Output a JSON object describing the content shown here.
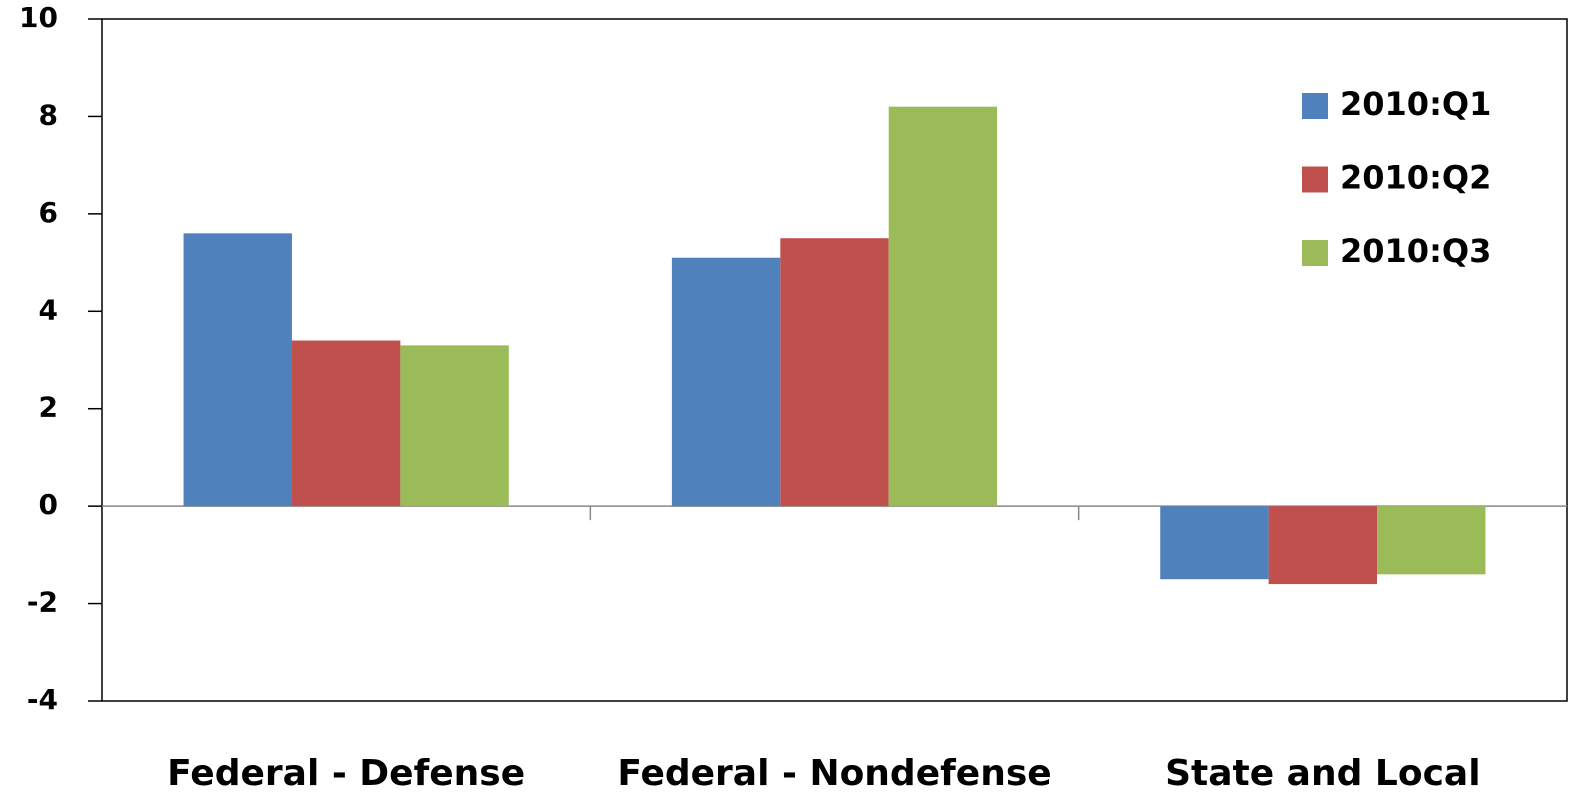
{
  "chart_data": {
    "type": "bar",
    "categories": [
      "Federal - Defense",
      "Federal - Nondefense",
      "State and Local"
    ],
    "series": [
      {
        "name": "2010:Q1",
        "color": "#4f81bd",
        "values": [
          5.6,
          5.1,
          -1.5
        ]
      },
      {
        "name": "2010:Q2",
        "color": "#c0504d",
        "values": [
          3.4,
          5.5,
          -1.6
        ]
      },
      {
        "name": "2010:Q3",
        "color": "#9bbb59",
        "values": [
          3.3,
          8.2,
          -1.4
        ]
      }
    ],
    "ylim": [
      -4,
      10
    ],
    "yticks": [
      -4,
      -2,
      0,
      2,
      4,
      6,
      8,
      10
    ],
    "grid": false,
    "legend": "top-right"
  }
}
